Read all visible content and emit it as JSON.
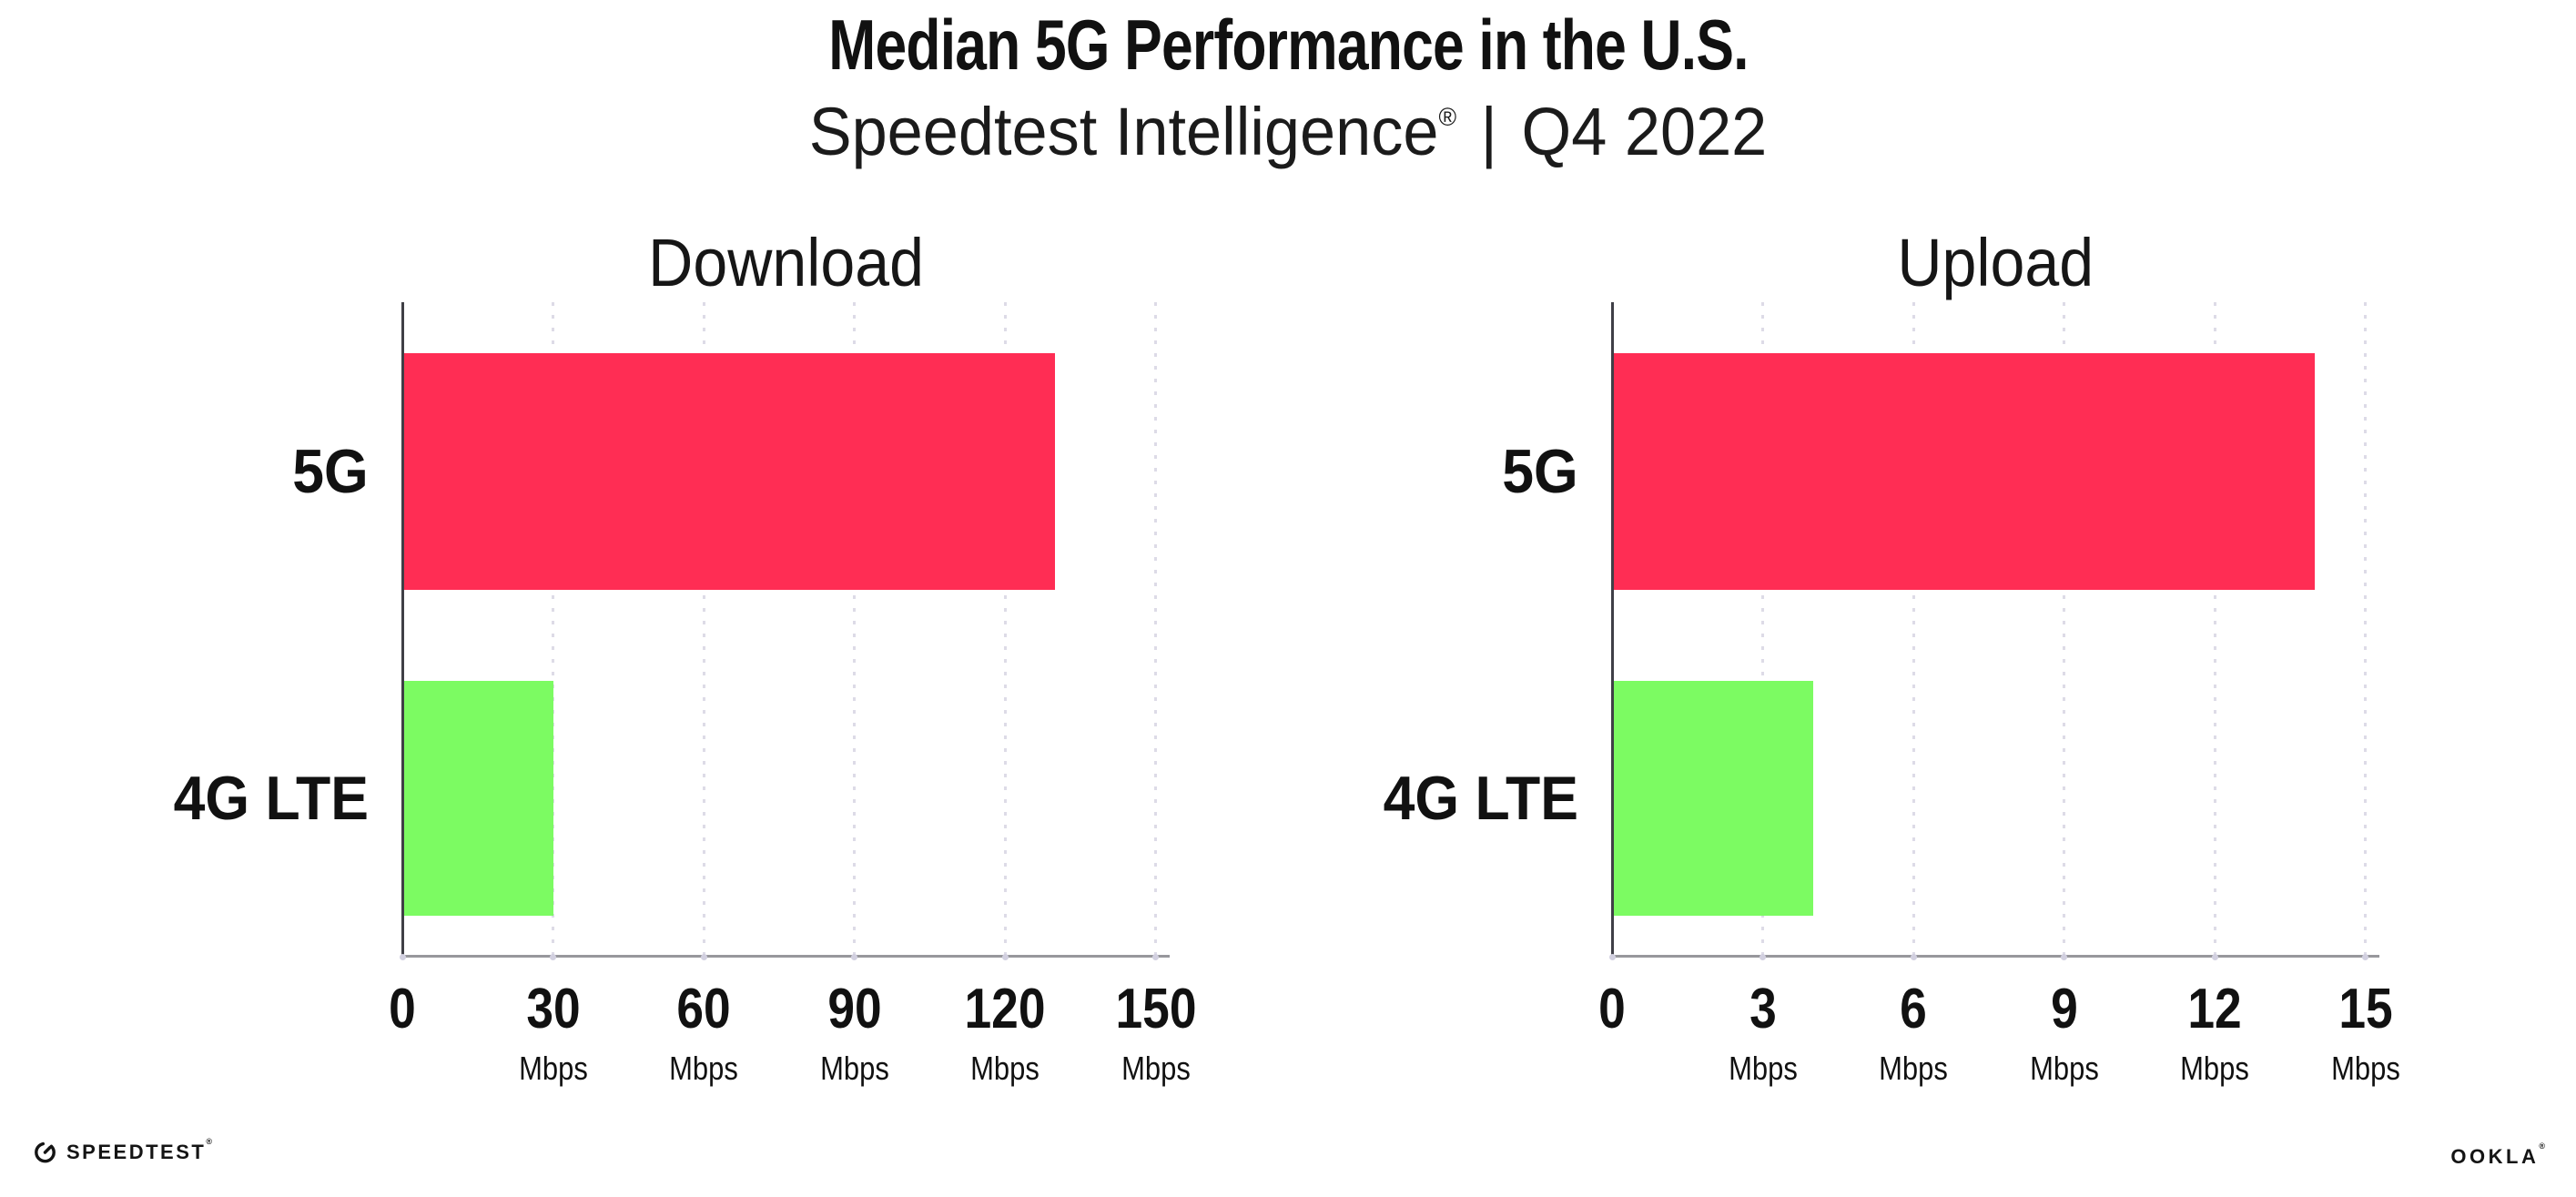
{
  "title": "Median 5G Performance in the U.S.",
  "subtitle": {
    "product": "Speedtest Intelligence",
    "registered_mark": "®",
    "separator": "|",
    "period": "Q4 2022"
  },
  "footer": {
    "speedtest_logo_text": "SPEEDTEST",
    "speedtest_registered": "®",
    "ookla_logo_text": "OOKLA",
    "ookla_registered": "®"
  },
  "colors": {
    "bar_5g": "#FF2D54",
    "bar_4g_lte": "#7CFB62",
    "gridline": "#DDDBE7",
    "x_baseline": "#97979C",
    "y_axis": "#3F3F46",
    "text": "#111111"
  },
  "chart_data": [
    {
      "type": "bar",
      "orientation": "horizontal",
      "title": "Download",
      "categories": [
        "5G",
        "4G LTE"
      ],
      "values": [
        130,
        30
      ],
      "unit": "Mbps",
      "xlabel": "",
      "ylabel": "",
      "xlim": [
        0,
        150
      ],
      "ticks": [
        0,
        30,
        60,
        90,
        120,
        150
      ],
      "gridlines": "vertical-dotted",
      "legend": "none"
    },
    {
      "type": "bar",
      "orientation": "horizontal",
      "title": "Upload",
      "categories": [
        "5G",
        "4G LTE"
      ],
      "values": [
        14,
        4
      ],
      "unit": "Mbps",
      "xlabel": "",
      "ylabel": "",
      "xlim": [
        0,
        15
      ],
      "ticks": [
        0,
        3,
        6,
        9,
        12,
        15
      ],
      "gridlines": "vertical-dotted",
      "legend": "none"
    }
  ]
}
